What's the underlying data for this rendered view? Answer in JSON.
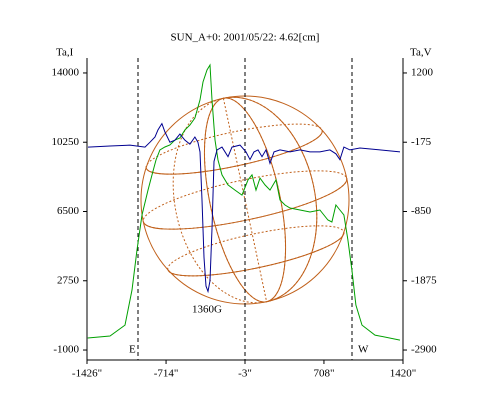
{
  "chart_data": {
    "type": "line",
    "title": "SUN_A+0: 2001/05/22: 4.62[cm]",
    "y_label": "Ta,I",
    "y2_label": "Ta,V",
    "xlim": [
      -1426,
      1420
    ],
    "xticks": [
      {
        "value": -1426,
        "label": "-1426\""
      },
      {
        "value": -714,
        "label": "-714\""
      },
      {
        "value": -3,
        "label": "-3\""
      },
      {
        "value": 708,
        "label": "708\""
      },
      {
        "value": 1420,
        "label": "1420\""
      }
    ],
    "ylim": [
      -1540,
      14810
    ],
    "yticks": [
      14000,
      10250,
      6500,
      2750,
      -1000
    ],
    "y2ticks": [
      1200,
      -175,
      -850,
      -1875,
      -2900
    ],
    "annotations": [
      "1360G",
      "E",
      "W"
    ],
    "series": [
      {
        "name": "Ta,I",
        "color": "#00a000",
        "x": [
          -1420,
          -1219,
          -1084,
          -1021,
          -976,
          -931,
          -877,
          -841,
          -805,
          -769,
          -724,
          -679,
          -634,
          -589,
          -544,
          -499,
          -454,
          -408,
          -381,
          -345,
          -318,
          -300,
          -273,
          -246,
          -210,
          -156,
          -93,
          -30,
          24,
          60,
          96,
          132,
          177,
          222,
          276,
          312,
          357,
          402,
          492,
          582,
          672,
          744,
          780,
          816,
          852,
          888,
          924,
          960,
          996,
          1051,
          1168,
          1393
        ],
        "values": [
          -350,
          -240,
          350,
          2250,
          4420,
          6310,
          7660,
          8480,
          9290,
          9830,
          9990,
          10100,
          10370,
          10480,
          10910,
          11180,
          11560,
          12540,
          13510,
          14160,
          14430,
          12540,
          10370,
          9290,
          8480,
          7940,
          7660,
          7390,
          8210,
          8480,
          7660,
          8310,
          7940,
          7660,
          8210,
          7120,
          6850,
          6690,
          6580,
          6470,
          6580,
          6040,
          5930,
          6850,
          6580,
          6310,
          4960,
          3330,
          1440,
          350,
          -190,
          -460
        ]
      },
      {
        "name": "Ta,V",
        "color": "#000090",
        "axis": "y2",
        "x": [
          -1417,
          -1219,
          -1039,
          -904,
          -859,
          -814,
          -787,
          -751,
          -724,
          -679,
          -634,
          -589,
          -544,
          -499,
          -454,
          -427,
          -408,
          -390,
          -372,
          -354,
          -336,
          -318,
          -300,
          -282,
          -255,
          -210,
          -156,
          -120,
          -48,
          6,
          42,
          78,
          114,
          150,
          186,
          222,
          258,
          312,
          402,
          492,
          582,
          672,
          762,
          816,
          852,
          888,
          942,
          1032,
          1212,
          1393
        ],
        "values": [
          -222,
          -212,
          -203,
          -222,
          -175,
          -72,
          71,
          194,
          30,
          -175,
          -134,
          -11,
          -134,
          -194,
          -72,
          -175,
          -269,
          -738,
          -1530,
          -1954,
          -2033,
          -1875,
          -1103,
          -363,
          -250,
          -222,
          -316,
          -222,
          -203,
          -269,
          -344,
          -269,
          -250,
          -316,
          -250,
          -381,
          -269,
          -250,
          -269,
          -250,
          -269,
          -269,
          -250,
          -288,
          -344,
          -222,
          -250,
          -231,
          -250,
          -269
        ]
      }
    ]
  }
}
